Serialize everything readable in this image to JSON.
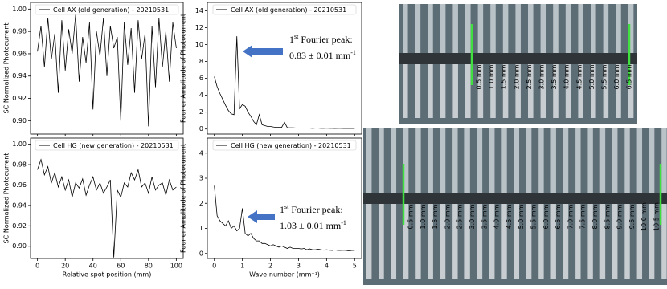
{
  "chart_data": [
    {
      "type": "line",
      "ylabel": "SC Normalized Photocurrent",
      "legend": "upper center",
      "show_xticklabels": false,
      "x": [
        0,
        2.5,
        5,
        7.5,
        10,
        12.5,
        15,
        17.5,
        20,
        22.5,
        25,
        27.5,
        30,
        32.5,
        35,
        37.5,
        40,
        42.5,
        45,
        47.5,
        50,
        52.5,
        55,
        57.5,
        60,
        62.5,
        65,
        67.5,
        70,
        72.5,
        75,
        77.5,
        80,
        82.5,
        85,
        87.5,
        90,
        92.5,
        95,
        97.5,
        100
      ],
      "series": [
        {
          "name": "Cell AX (old generation) - 20210531",
          "color": "#000000",
          "values": [
            0.962,
            0.985,
            0.948,
            0.992,
            0.955,
            0.978,
            0.925,
            0.99,
            0.945,
            0.982,
            0.96,
            0.995,
            0.935,
            0.975,
            0.952,
            0.988,
            0.91,
            0.98,
            0.958,
            0.992,
            0.94,
            0.985,
            0.965,
            0.975,
            0.9,
            0.988,
            0.95,
            0.983,
            0.925,
            0.99,
            0.955,
            0.978,
            0.895,
            0.985,
            0.93,
            0.992,
            0.948,
            0.98,
            0.935,
            0.988,
            0.965
          ]
        }
      ],
      "xlim": [
        -5,
        105
      ],
      "xticks": [
        0,
        20,
        40,
        60,
        80,
        100
      ],
      "ylim": [
        0.888,
        1.006
      ],
      "yticks": [
        {
          "value": 0.9,
          "label": "0.90"
        },
        {
          "value": 0.92,
          "label": "0.92"
        },
        {
          "value": 0.94,
          "label": "0.94"
        },
        {
          "value": 0.96,
          "label": "0.96"
        },
        {
          "value": 0.98,
          "label": "0.98"
        },
        {
          "value": 1.0,
          "label": "1.00"
        }
      ]
    },
    {
      "type": "line",
      "ylabel": "Fourier Amplitude of Photocurrent",
      "legend": "upper center",
      "show_xticklabels": false,
      "x": [
        0,
        0.1,
        0.2,
        0.3,
        0.4,
        0.5,
        0.6,
        0.7,
        0.8,
        0.9,
        1,
        1.1,
        1.2,
        1.3,
        1.4,
        1.5,
        1.6,
        1.7,
        1.8,
        1.9,
        2,
        2.1,
        2.2,
        2.3,
        2.4,
        2.5,
        2.6,
        2.7,
        2.8,
        2.9,
        3,
        3.1,
        3.2,
        3.3,
        3.4,
        3.5,
        3.6,
        3.7,
        3.8,
        3.9,
        4,
        4.1,
        4.2,
        4.3,
        4.4,
        4.5,
        4.6,
        4.7,
        4.8,
        4.9,
        5
      ],
      "series": [
        {
          "name": "Cell AX (old generation) - 20210531",
          "color": "#000000",
          "values": [
            6.2,
            5.0,
            4.2,
            3.5,
            2.8,
            2.2,
            1.8,
            1.7,
            11.0,
            2.4,
            2.9,
            2.7,
            2.0,
            1.5,
            0.9,
            0.5,
            1.7,
            0.5,
            0.4,
            0.3,
            0.3,
            0.25,
            0.2,
            0.2,
            0.2,
            0.8,
            0.15,
            0.15,
            0.15,
            0.12,
            0.1,
            0.1,
            0.12,
            0.1,
            0.1,
            0.08,
            0.1,
            0.1,
            0.08,
            0.08,
            0.1,
            0.08,
            0.08,
            0.07,
            0.08,
            0.08,
            0.07,
            0.07,
            0.08,
            0.07,
            0.07
          ]
        }
      ],
      "xlim": [
        -0.25,
        5.25
      ],
      "xticks": [
        0,
        1,
        2,
        3,
        4,
        5
      ],
      "ylim": [
        -0.6,
        15
      ],
      "yticks": [
        0,
        2,
        4,
        6,
        8,
        10,
        12,
        14
      ],
      "annotation": {
        "ordinal": "1",
        "suffix": "st",
        "label": " Fourier peak:",
        "value": "0.83 ± 0.01 mm",
        "exponent": "-1",
        "arrow_color": "#4472c4"
      }
    },
    {
      "type": "line",
      "ylabel": "SC Normalized Photocurrent",
      "xlabel": "Relative spot position (mm)",
      "legend": "upper center",
      "show_xticklabels": true,
      "x": [
        0,
        2.5,
        5,
        7.5,
        10,
        12.5,
        15,
        17.5,
        20,
        22.5,
        25,
        27.5,
        30,
        32.5,
        35,
        37.5,
        40,
        42.5,
        45,
        47.5,
        50,
        52.5,
        55,
        57.5,
        60,
        62.5,
        65,
        67.5,
        70,
        72.5,
        75,
        77.5,
        80,
        82.5,
        85,
        87.5,
        90,
        92.5,
        95,
        97.5,
        100
      ],
      "series": [
        {
          "name": "Cell HG (new generation) - 20210531",
          "color": "#000000",
          "values": [
            0.975,
            0.985,
            0.97,
            0.978,
            0.962,
            0.972,
            0.958,
            0.968,
            0.955,
            0.965,
            0.948,
            0.962,
            0.957,
            0.966,
            0.95,
            0.96,
            0.968,
            0.955,
            0.962,
            0.952,
            0.958,
            0.965,
            0.889,
            0.955,
            0.948,
            0.962,
            0.958,
            0.972,
            0.965,
            0.975,
            0.958,
            0.962,
            0.952,
            0.968,
            0.955,
            0.96,
            0.962,
            0.95,
            0.965,
            0.955,
            0.958
          ]
        }
      ],
      "xlim": [
        -5,
        105
      ],
      "xticks": [
        0,
        20,
        40,
        60,
        80,
        100
      ],
      "ylim": [
        0.888,
        1.006
      ],
      "yticks": [
        {
          "value": 0.9,
          "label": "0.90"
        },
        {
          "value": 0.92,
          "label": "0.92"
        },
        {
          "value": 0.94,
          "label": "0.94"
        },
        {
          "value": 0.96,
          "label": "0.96"
        },
        {
          "value": 0.98,
          "label": "0.98"
        },
        {
          "value": 1.0,
          "label": "1.00"
        }
      ]
    },
    {
      "type": "line",
      "ylabel": "Fourier Amplitude of Photocurrent",
      "xlabel": "Wave-number (mm⁻¹)",
      "legend": "upper center",
      "show_xticklabels": true,
      "x": [
        0,
        0.1,
        0.2,
        0.3,
        0.4,
        0.5,
        0.6,
        0.7,
        0.8,
        0.9,
        1,
        1.1,
        1.2,
        1.3,
        1.4,
        1.5,
        1.6,
        1.7,
        1.8,
        1.9,
        2,
        2.1,
        2.2,
        2.3,
        2.4,
        2.5,
        2.6,
        2.7,
        2.8,
        2.9,
        3,
        3.1,
        3.2,
        3.3,
        3.4,
        3.5,
        3.6,
        3.7,
        3.8,
        3.9,
        4,
        4.1,
        4.2,
        4.3,
        4.4,
        4.5,
        4.6,
        4.7,
        4.8,
        4.9,
        5
      ],
      "series": [
        {
          "name": "Cell HG (new generation) - 20210531",
          "color": "#000000",
          "values": [
            2.7,
            1.5,
            1.3,
            1.2,
            1.1,
            1.3,
            1.0,
            1.1,
            0.9,
            1.0,
            1.8,
            0.8,
            0.7,
            0.8,
            0.6,
            0.5,
            0.5,
            0.4,
            0.4,
            0.35,
            0.3,
            0.35,
            0.3,
            0.25,
            0.3,
            0.25,
            0.2,
            0.25,
            0.2,
            0.2,
            0.2,
            0.18,
            0.2,
            0.15,
            0.18,
            0.15,
            0.15,
            0.17,
            0.15,
            0.13,
            0.15,
            0.13,
            0.12,
            0.14,
            0.12,
            0.12,
            0.13,
            0.12,
            0.1,
            0.12,
            0.12
          ]
        }
      ],
      "xlim": [
        -0.25,
        5.25
      ],
      "xticks": [
        0,
        1,
        2,
        3,
        4,
        5
      ],
      "ylim": [
        -0.2,
        4.6
      ],
      "yticks": [
        0,
        1,
        2,
        3,
        4
      ],
      "annotation": {
        "ordinal": "1",
        "suffix": "st",
        "label": " Fourier peak:",
        "value": "1.03 ± 0.01 mm",
        "exponent": "-1",
        "arrow_color": "#4472c4"
      }
    }
  ],
  "photos": [
    {
      "labels": [
        "0.5 mm",
        "1.0 mm",
        "1.5 mm",
        "2.0 mm",
        "2.5 mm",
        "3.0 mm",
        "3.5 mm",
        "4.0 mm",
        "4.5 mm",
        "5.0 mm",
        "5.5 mm",
        "6.0 mm",
        "6.5 mm"
      ]
    },
    {
      "labels": [
        "0.5 mm",
        "1.0 mm",
        "1.5 mm",
        "2.0 mm",
        "2.5 mm",
        "3.0 mm",
        "3.5 mm",
        "4.0 mm",
        "4.5 mm",
        "5.0 mm",
        "5.5 mm",
        "6.0 mm",
        "6.5 mm",
        "7.0 mm",
        "7.5 mm",
        "8.0 mm",
        "8.5 mm",
        "9.0 mm",
        "9.5 mm",
        "10.0 mm",
        "10.5 mm"
      ]
    }
  ]
}
